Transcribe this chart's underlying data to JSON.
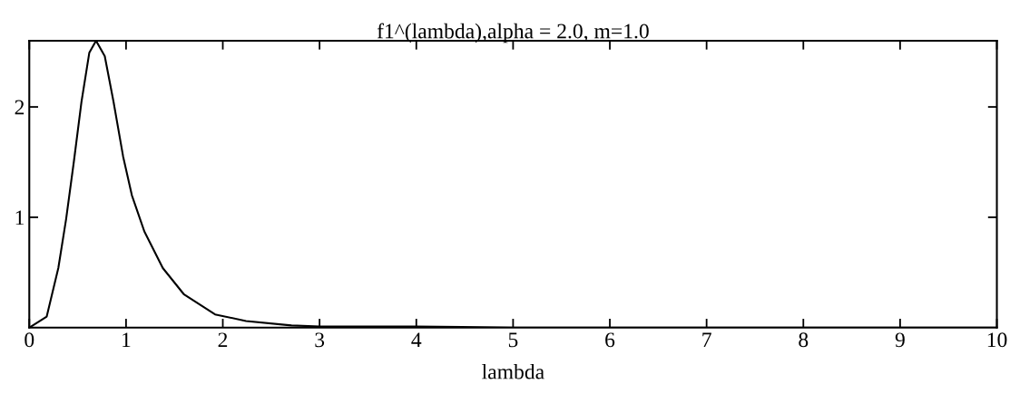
{
  "chart_data": {
    "type": "line",
    "title": "f1^(lambda),alpha = 2.0, m=1.0",
    "xlabel": "lambda",
    "x": [
      0,
      0.18,
      0.3,
      0.38,
      0.46,
      0.54,
      0.62,
      0.69,
      0.78,
      0.87,
      0.97,
      1.06,
      1.19,
      1.38,
      1.6,
      1.92,
      2.24,
      2.71,
      3,
      4,
      5,
      6,
      7,
      8,
      9,
      10
    ],
    "series": [
      {
        "color": "#000000",
        "values": [
          0,
          0.1,
          0.54,
          0.98,
          1.5,
          2.05,
          2.49,
          2.6,
          2.46,
          2.05,
          1.55,
          1.2,
          0.87,
          0.54,
          0.3,
          0.12,
          0.06,
          0.02,
          0.01,
          0.01,
          0,
          0,
          0,
          0,
          0,
          0
        ]
      }
    ],
    "xlim": [
      0,
      10
    ],
    "xticks": [
      0,
      1,
      2,
      3,
      4,
      5,
      6,
      7,
      8,
      9,
      10
    ],
    "ylim": [
      0,
      2.6
    ],
    "yticks": [
      1,
      2
    ],
    "grid": false,
    "legend": false,
    "marker": "none",
    "line_style": "solid"
  }
}
